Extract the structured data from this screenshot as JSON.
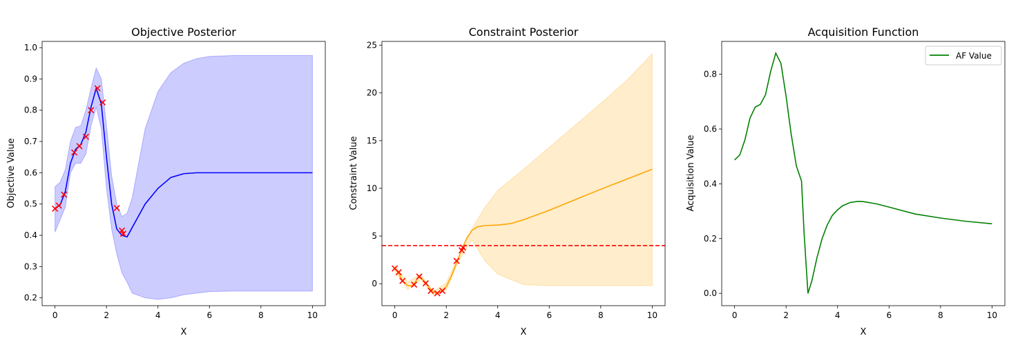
{
  "chart_data": [
    {
      "type": "line",
      "title": "Objective Posterior",
      "xlabel": "X",
      "ylabel": "Objective Value",
      "xlim": [
        -0.5,
        10.5
      ],
      "ylim": [
        0.175,
        1.02
      ],
      "xticks": [
        0,
        2,
        4,
        6,
        8,
        10
      ],
      "yticks": [
        0.2,
        0.3,
        0.4,
        0.5,
        0.6,
        0.7,
        0.8,
        0.9,
        1.0
      ],
      "colors": {
        "mean": "#0000ff",
        "band": "#0000ff",
        "observations": "#ff0000"
      },
      "mean": {
        "x": [
          0,
          0.2,
          0.4,
          0.6,
          0.8,
          1.0,
          1.2,
          1.4,
          1.6,
          1.8,
          2.0,
          2.2,
          2.4,
          2.6,
          2.8,
          3.0,
          3.2,
          3.5,
          4,
          4.5,
          5,
          5.5,
          6,
          7,
          8,
          10
        ],
        "y": [
          0.485,
          0.497,
          0.54,
          0.63,
          0.675,
          0.69,
          0.73,
          0.81,
          0.87,
          0.82,
          0.65,
          0.5,
          0.42,
          0.4,
          0.395,
          0.425,
          0.455,
          0.5,
          0.55,
          0.585,
          0.597,
          0.6,
          0.6,
          0.6,
          0.6,
          0.6
        ]
      },
      "band": {
        "x": [
          0,
          0.2,
          0.4,
          0.6,
          0.8,
          1.0,
          1.2,
          1.4,
          1.6,
          1.8,
          2.0,
          2.2,
          2.4,
          2.6,
          2.8,
          3.0,
          3.5,
          4,
          4.5,
          5,
          5.5,
          6,
          7,
          8,
          10
        ],
        "lower": [
          0.41,
          0.45,
          0.49,
          0.6,
          0.63,
          0.63,
          0.66,
          0.75,
          0.81,
          0.74,
          0.55,
          0.42,
          0.34,
          0.28,
          0.25,
          0.215,
          0.2,
          0.195,
          0.2,
          0.21,
          0.215,
          0.22,
          0.222,
          0.222,
          0.222
        ],
        "upper": [
          0.555,
          0.57,
          0.61,
          0.7,
          0.745,
          0.75,
          0.8,
          0.87,
          0.935,
          0.9,
          0.75,
          0.59,
          0.5,
          0.46,
          0.47,
          0.52,
          0.74,
          0.86,
          0.92,
          0.95,
          0.965,
          0.972,
          0.975,
          0.975,
          0.975
        ]
      },
      "observations": {
        "x": [
          0.0,
          0.15,
          0.35,
          0.75,
          0.95,
          1.2,
          1.4,
          1.65,
          1.85,
          2.4,
          2.6,
          2.65
        ],
        "y": [
          0.485,
          0.495,
          0.53,
          0.665,
          0.685,
          0.715,
          0.8,
          0.87,
          0.825,
          0.487,
          0.415,
          0.405
        ]
      }
    },
    {
      "type": "line",
      "title": "Constraint Posterior",
      "xlabel": "X",
      "ylabel": "Constraint Value",
      "xlim": [
        -0.5,
        10.5
      ],
      "ylim": [
        -2.3,
        25.4
      ],
      "xticks": [
        0,
        2,
        4,
        6,
        8,
        10
      ],
      "yticks": [
        0,
        5,
        10,
        15,
        20,
        25
      ],
      "threshold": 4,
      "colors": {
        "mean": "#ffa500",
        "band": "#ffa500",
        "observations": "#ff0000",
        "threshold": "#ff0000"
      },
      "mean": {
        "x": [
          0,
          0.15,
          0.3,
          0.5,
          0.7,
          0.9,
          1.0,
          1.2,
          1.4,
          1.6,
          1.8,
          2.0,
          2.2,
          2.4,
          2.6,
          2.8,
          3.0,
          3.2,
          3.5,
          4,
          4.5,
          5,
          6,
          7,
          8,
          9,
          10
        ],
        "y": [
          1.6,
          1.1,
          0.3,
          -0.2,
          -0.2,
          0.6,
          0.7,
          0.1,
          -0.6,
          -1.0,
          -0.8,
          -0.3,
          0.8,
          2.2,
          3.6,
          4.8,
          5.6,
          5.95,
          6.1,
          6.15,
          6.3,
          6.7,
          7.7,
          8.8,
          9.9,
          10.95,
          12.0
        ]
      },
      "band": {
        "x": [
          0,
          0.5,
          1.0,
          1.5,
          2.0,
          2.4,
          2.7,
          3.0,
          3.5,
          4,
          5,
          6,
          7,
          8,
          9,
          10
        ],
        "lower": [
          1.3,
          -0.6,
          0.4,
          -1.2,
          -0.7,
          1.9,
          3.4,
          4.6,
          2.4,
          1.0,
          -0.1,
          -0.2,
          -0.2,
          -0.2,
          -0.2,
          -0.2
        ],
        "upper": [
          1.9,
          0.2,
          1.0,
          -0.8,
          0.1,
          2.5,
          3.9,
          5.8,
          8.0,
          9.8,
          12.0,
          14.3,
          16.6,
          18.9,
          21.3,
          24.1
        ]
      },
      "observations": {
        "x": [
          0.0,
          0.15,
          0.3,
          0.75,
          0.95,
          1.2,
          1.4,
          1.65,
          1.85,
          2.4,
          2.6,
          2.65
        ],
        "y": [
          1.6,
          1.2,
          0.3,
          -0.1,
          0.75,
          0.05,
          -0.75,
          -1.0,
          -0.75,
          2.4,
          3.5,
          3.8
        ]
      }
    },
    {
      "type": "line",
      "title": "Acquisition Function",
      "xlabel": "X",
      "ylabel": "Acquisition Value",
      "xlim": [
        -0.5,
        10.5
      ],
      "ylim": [
        -0.045,
        0.92
      ],
      "xticks": [
        0,
        2,
        4,
        6,
        8,
        10
      ],
      "yticks": [
        0.0,
        0.2,
        0.4,
        0.6,
        0.8
      ],
      "legend": "top-right",
      "colors": {
        "line": "#008000"
      },
      "series": [
        {
          "name": "AF Value",
          "x": [
            0,
            0.2,
            0.4,
            0.6,
            0.8,
            1.0,
            1.2,
            1.4,
            1.6,
            1.8,
            2.0,
            2.2,
            2.4,
            2.6,
            2.7,
            2.85,
            3.0,
            3.2,
            3.4,
            3.6,
            3.8,
            4.0,
            4.2,
            4.5,
            4.8,
            5.0,
            5.5,
            6,
            7,
            8,
            9,
            10
          ],
          "y": [
            0.487,
            0.505,
            0.56,
            0.64,
            0.68,
            0.69,
            0.725,
            0.81,
            0.877,
            0.84,
            0.72,
            0.58,
            0.465,
            0.41,
            0.22,
            0.0,
            0.045,
            0.13,
            0.2,
            0.25,
            0.285,
            0.305,
            0.32,
            0.332,
            0.336,
            0.335,
            0.327,
            0.315,
            0.29,
            0.275,
            0.263,
            0.254
          ]
        }
      ]
    }
  ]
}
